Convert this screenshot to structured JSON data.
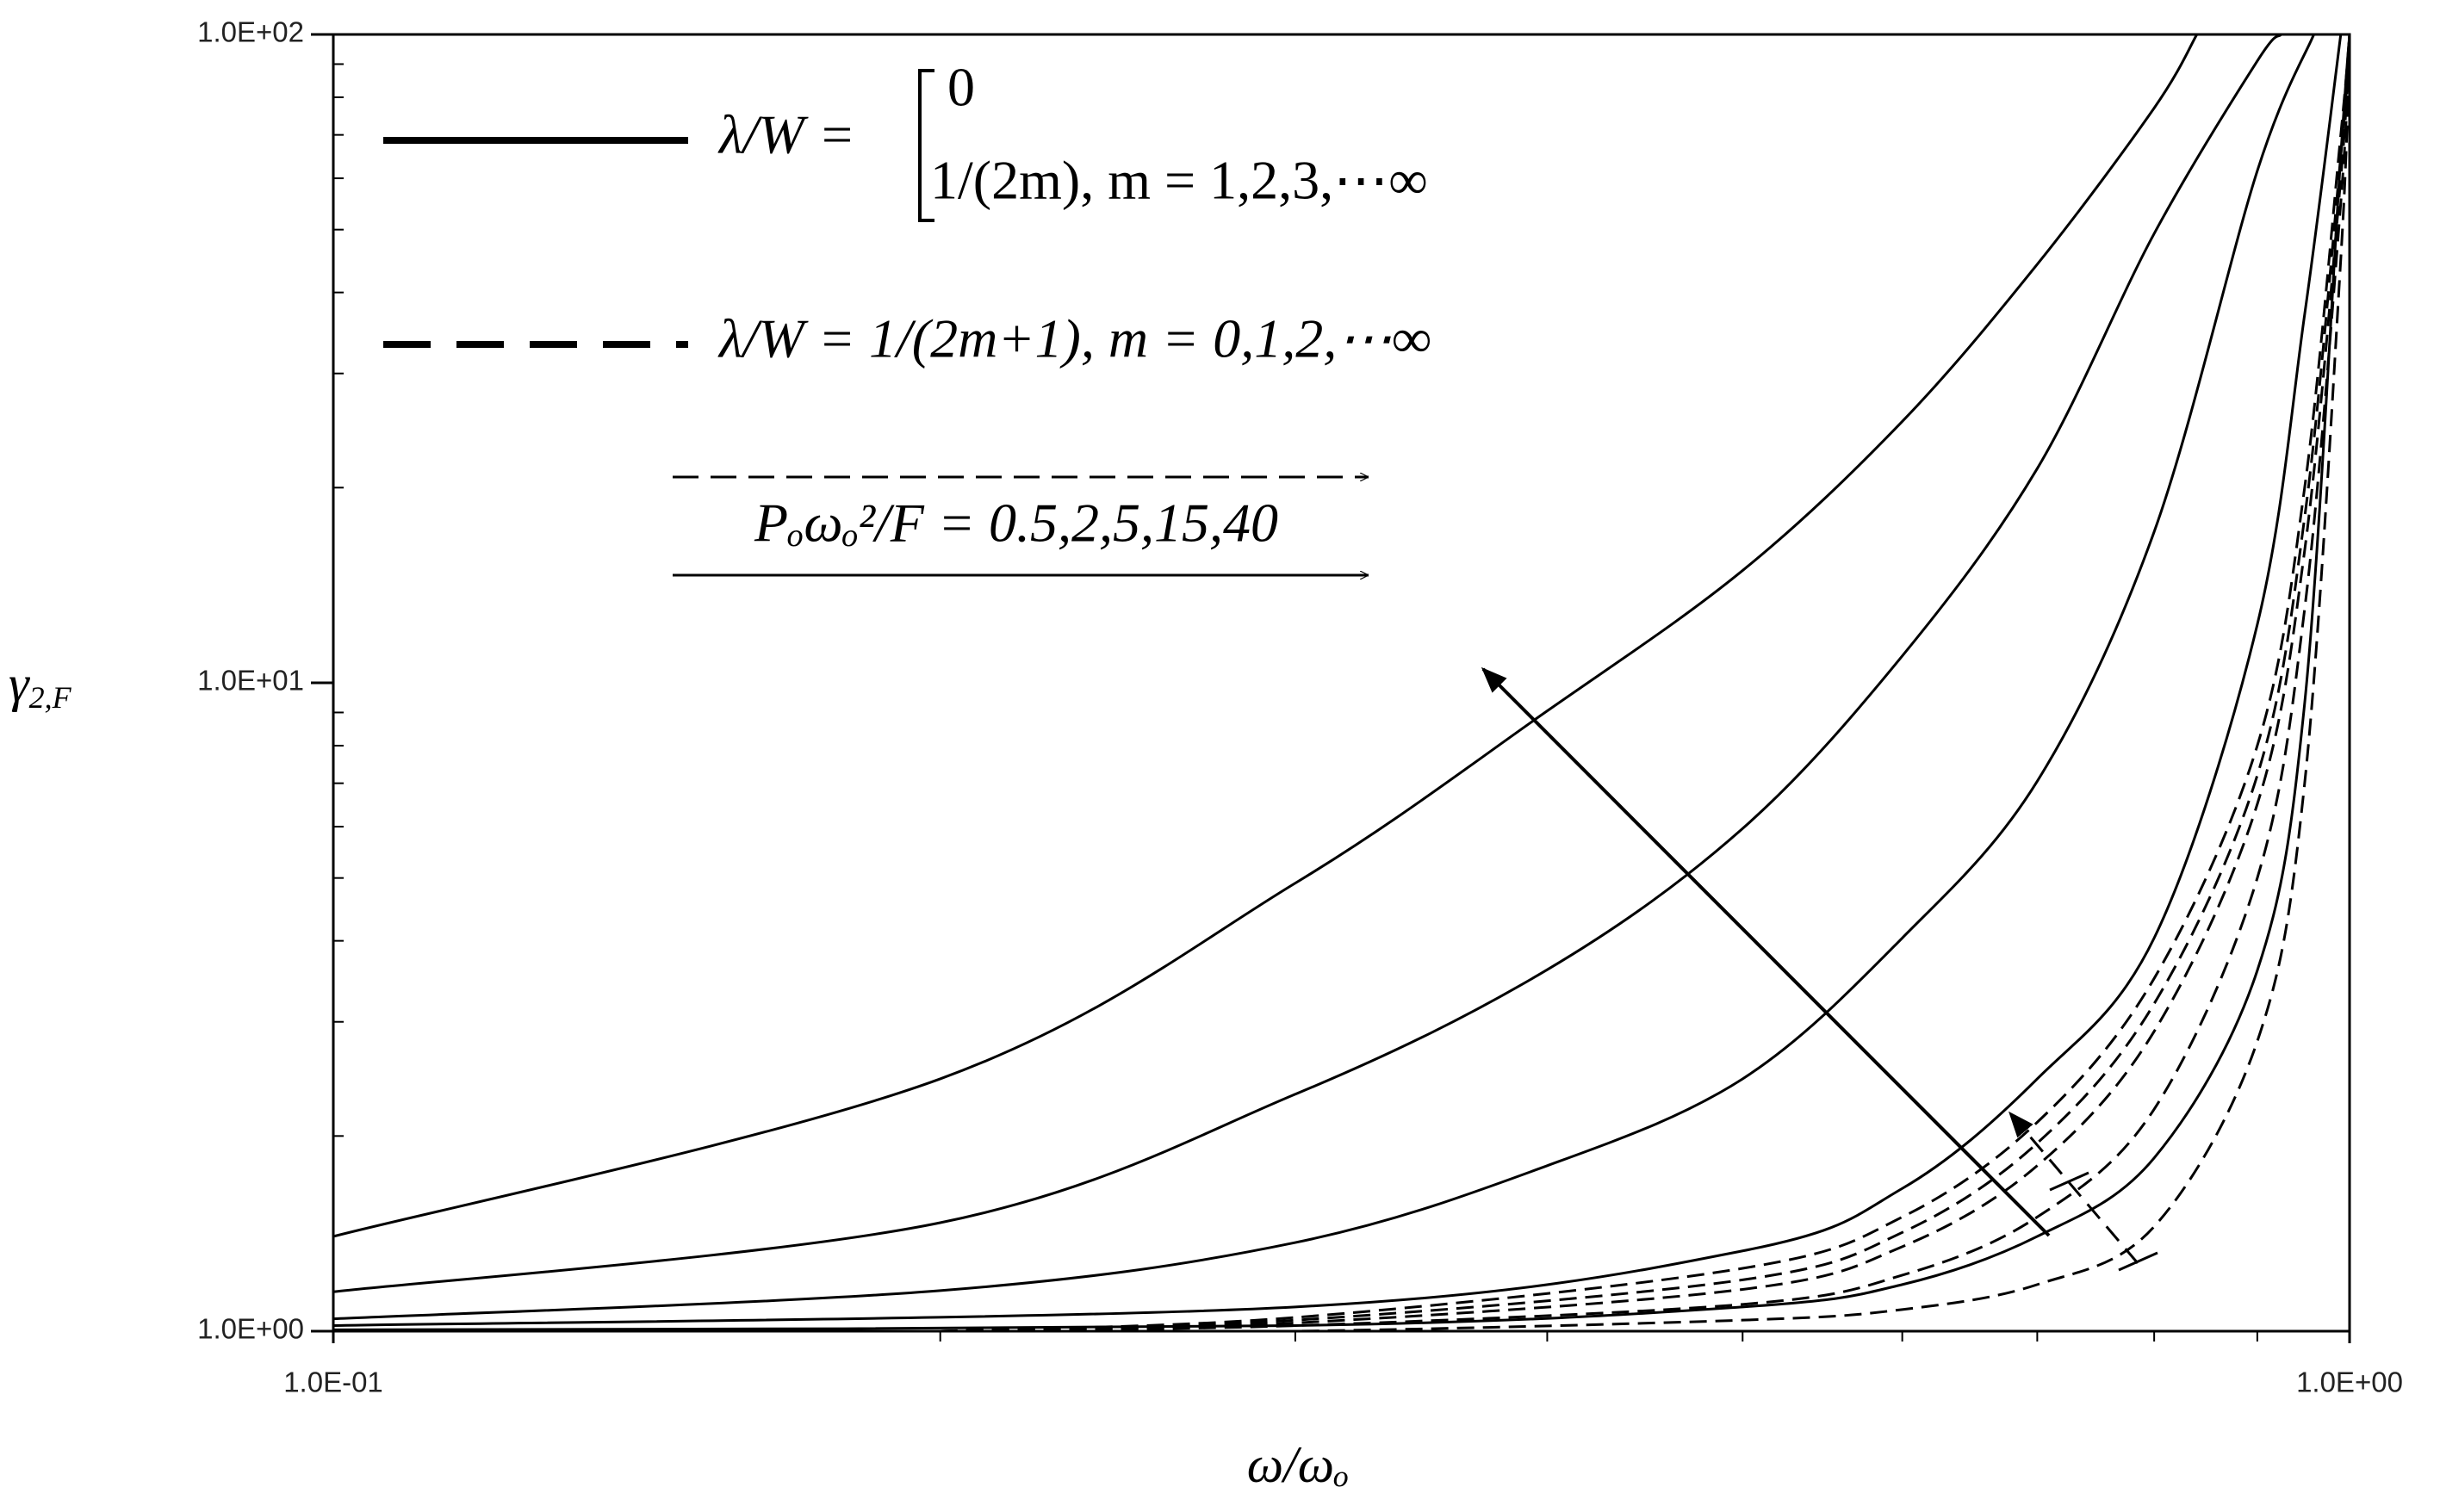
{
  "chart_data": {
    "type": "line",
    "xscale": "log",
    "yscale": "log",
    "xlabel": "ω/ωₒ",
    "ylabel": {
      "symbol": "γ",
      "subscript": "2,F"
    },
    "xlim": [
      0.1,
      1
    ],
    "ylim": [
      1,
      100
    ],
    "xticks": [
      {
        "value": 0.1,
        "label": "1.0E-01"
      },
      {
        "value": 1,
        "label": "1.0E+00"
      }
    ],
    "yticks": [
      {
        "value": 1,
        "label": "1.0E+00"
      },
      {
        "value": 10,
        "label": "1.0E+01"
      },
      {
        "value": 100,
        "label": "1.0E+02"
      }
    ],
    "xminorticks": [
      0.2,
      0.3,
      0.4,
      0.5,
      0.6,
      0.7,
      0.8,
      0.9
    ],
    "yminorticks": [
      2,
      3,
      4,
      5,
      6,
      7,
      8,
      9,
      20,
      30,
      40,
      50,
      60,
      70,
      80,
      90
    ],
    "legend": [
      {
        "style": "solid",
        "label": "λ/W =",
        "cases": [
          "0",
          "1/(2m),    m = 1,2,3,⋯∞"
        ]
      },
      {
        "style": "dashed",
        "label": "λ/W = 1/(2m+1), m = 0,1,2,⋯∞"
      }
    ],
    "annotation": "Pₒωₒ²/F = 0.5,2,5,15,40",
    "series": [
      {
        "color": "#000000",
        "style": "solid",
        "x": [
          0.1,
          0.2,
          0.3,
          0.4,
          0.5,
          0.6,
          0.7,
          0.8,
          0.84
        ],
        "values": [
          1.4,
          2.45,
          4.91,
          9.05,
          14.9,
          25.3,
          44.2,
          77,
          100
        ]
      },
      {
        "color": "#000000",
        "style": "solid",
        "x": [
          0.1,
          0.2,
          0.3,
          0.4,
          0.5,
          0.6,
          0.7,
          0.8,
          0.9,
          0.925
        ],
        "values": [
          1.15,
          1.47,
          2.32,
          3.61,
          5.96,
          11,
          21.4,
          49.3,
          91,
          100
        ]
      },
      {
        "color": "#000000",
        "style": "solid",
        "x": [
          0.1,
          0.2,
          0.3,
          0.4,
          0.5,
          0.6,
          0.7,
          0.8,
          0.9,
          0.96
        ],
        "values": [
          1.045,
          1.155,
          1.37,
          1.8,
          2.45,
          4.04,
          7.05,
          17.1,
          61.6,
          100
        ]
      },
      {
        "color": "#000000",
        "style": "solid",
        "x": [
          0.1,
          0.3,
          0.5,
          0.6,
          0.7,
          0.8,
          0.9,
          0.95,
          0.99
        ],
        "values": [
          1.02,
          1.09,
          1.33,
          1.66,
          2.45,
          4.04,
          12.3,
          37,
          100
        ]
      },
      {
        "color": "#000000",
        "style": "solid",
        "x": [
          0.1,
          0.3,
          0.5,
          0.6,
          0.7,
          0.8,
          0.9,
          0.95,
          0.99,
          1
        ],
        "values": [
          1.005,
          1.02,
          1.09,
          1.18,
          1.4,
          1.85,
          3.6,
          9.3,
          65,
          100
        ]
      },
      {
        "color": "#000000",
        "style": "dashed",
        "x": [
          0.2,
          0.3,
          0.5,
          0.6,
          0.7,
          0.8,
          0.9,
          0.95,
          0.99,
          1
        ],
        "values": [
          1,
          1.05,
          1.25,
          1.5,
          2.1,
          3.5,
          8,
          20,
          70,
          100
        ]
      },
      {
        "color": "#000000",
        "style": "dashed",
        "x": [
          0.2,
          0.3,
          0.5,
          0.6,
          0.7,
          0.8,
          0.9,
          0.95,
          0.99,
          1
        ],
        "values": [
          1,
          1.04,
          1.2,
          1.42,
          1.95,
          3.2,
          7.2,
          18,
          65,
          100
        ]
      },
      {
        "color": "#000000",
        "style": "dashed",
        "x": [
          0.2,
          0.3,
          0.5,
          0.6,
          0.7,
          0.8,
          0.9,
          0.95,
          0.99,
          1
        ],
        "values": [
          1,
          1.03,
          1.16,
          1.35,
          1.8,
          2.9,
          6.5,
          16,
          60,
          100
        ]
      },
      {
        "color": "#000000",
        "style": "dashed",
        "x": [
          0.2,
          0.3,
          0.5,
          0.6,
          0.7,
          0.8,
          0.9,
          0.95,
          0.99,
          1
        ],
        "values": [
          1,
          1.02,
          1.1,
          1.22,
          1.5,
          2.2,
          5,
          13,
          55,
          100
        ]
      },
      {
        "color": "#000000",
        "style": "dashed",
        "x": [
          0.2,
          0.3,
          0.5,
          0.6,
          0.7,
          0.8,
          0.9,
          0.95,
          0.99,
          1
        ],
        "values": [
          1,
          1,
          1.04,
          1.08,
          1.18,
          1.45,
          2.8,
          7,
          45,
          100
        ]
      }
    ]
  }
}
